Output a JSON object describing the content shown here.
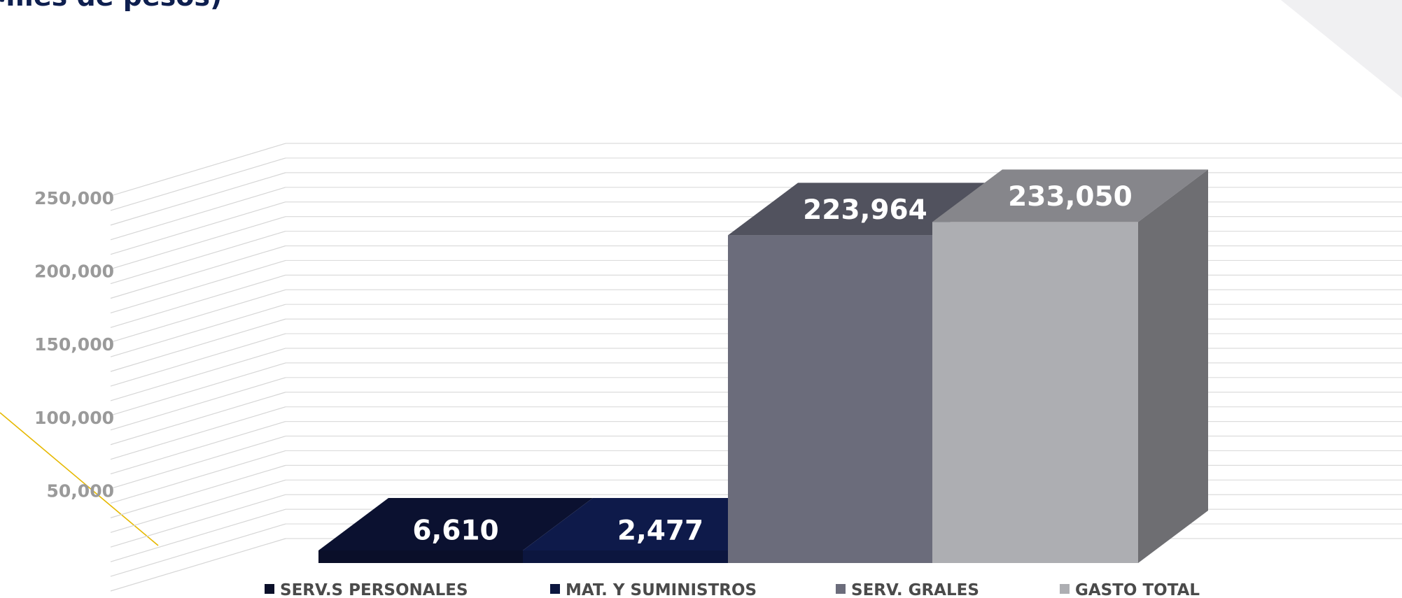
{
  "title_fragment": "Miles de pesos)",
  "chart_data": {
    "type": "bar",
    "title": "Miles de pesos)",
    "ylim": [
      0,
      250000
    ],
    "yticks": [
      50000,
      100000,
      150000,
      200000,
      250000
    ],
    "ytick_labels": [
      "50,000",
      "100,000",
      "150,000",
      "200,000",
      "250,000"
    ],
    "grid": true,
    "legend_position": "bottom",
    "series": [
      {
        "name": "SERV.S PERSONALES",
        "value": 6610,
        "label": "6,610",
        "color": "#0a0f29"
      },
      {
        "name": "MAT. Y SUMINISTROS",
        "value": 2477,
        "label": "2,477",
        "color": "#0c163f"
      },
      {
        "name": "SERV. GRALES",
        "value": 223964,
        "label": "223,964",
        "color": "#6b6c7b"
      },
      {
        "name": "GASTO TOTAL",
        "value": 233050,
        "label": "233,050",
        "color": "#adaeb2"
      }
    ]
  }
}
